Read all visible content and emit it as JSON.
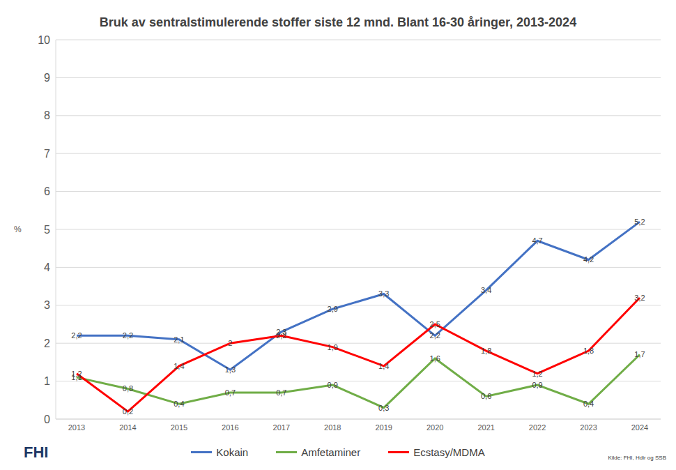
{
  "chart_data": {
    "type": "line",
    "title": "Bruk av sentralstimulerende stoffer siste 12 mnd. Blant 16-30 åringer, 2013-2024",
    "y_label": "%",
    "categories": [
      "2013",
      "2014",
      "2015",
      "2016",
      "2017",
      "2018",
      "2019",
      "2020",
      "2021",
      "2022",
      "2023",
      "2024"
    ],
    "series": [
      {
        "name": "Kokain",
        "color": "#4472c4",
        "values": [
          2.2,
          2.2,
          2.1,
          1.3,
          2.3,
          2.9,
          3.3,
          2.2,
          3.4,
          4.7,
          4.2,
          5.2
        ],
        "value_labels": [
          "2,2",
          "2,2",
          "2,1",
          "1,3",
          "2,3",
          "2,9",
          "3,3",
          "2,2",
          "3,4",
          "4,7",
          "4,2",
          "5,2"
        ]
      },
      {
        "name": "Amfetaminer",
        "color": "#70ad47",
        "values": [
          1.1,
          0.8,
          0.4,
          0.7,
          0.7,
          0.9,
          0.3,
          1.6,
          0.6,
          0.9,
          0.4,
          1.7
        ],
        "value_labels": [
          "1,1",
          "0,8",
          "0,4",
          "0,7",
          "0,7",
          "0,9",
          "0,3",
          "1,6",
          "0,6",
          "0,9",
          "0,4",
          "1,7"
        ]
      },
      {
        "name": "Ecstasy/MDMA",
        "color": "#ff0000",
        "values": [
          1.2,
          0.2,
          1.4,
          2,
          2.2,
          1.9,
          1.4,
          2.5,
          1.8,
          1.2,
          1.8,
          3.2
        ],
        "value_labels": [
          "1,2",
          "0,2",
          "1,4",
          "2",
          "2,2",
          "1,9",
          "1,4",
          "2,5",
          "1,8",
          "1,2",
          "1,8",
          "3,2"
        ]
      }
    ],
    "ylim": [
      0,
      10
    ],
    "yticks": [
      0,
      1,
      2,
      3,
      4,
      5,
      6,
      7,
      8,
      9,
      10
    ],
    "grid": true,
    "legend": "bottom",
    "data_labels": true,
    "source": "Kilde: FHI, Hdir og SSB",
    "logo": "FHI"
  }
}
